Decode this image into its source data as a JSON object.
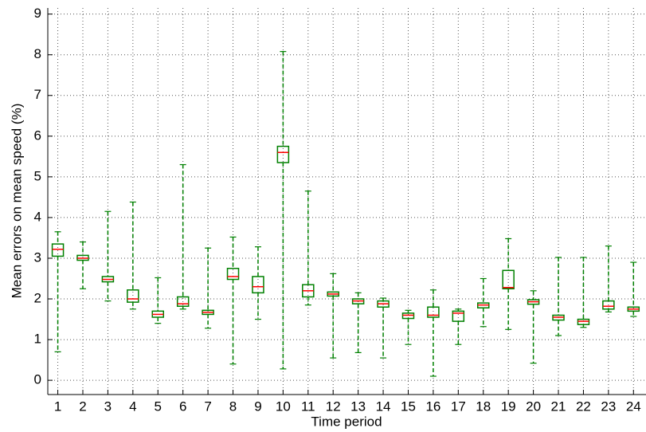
{
  "chart_data": {
    "type": "box",
    "xlabel": "Time period",
    "ylabel": "Mean errors on mean speed (%)",
    "x": [
      1,
      2,
      3,
      4,
      5,
      6,
      7,
      8,
      9,
      10,
      11,
      12,
      13,
      14,
      15,
      16,
      17,
      18,
      19,
      20,
      21,
      22,
      23,
      24
    ],
    "min": [
      0.7,
      2.25,
      1.95,
      1.75,
      1.4,
      1.75,
      1.28,
      0.4,
      1.5,
      0.28,
      1.85,
      0.55,
      0.68,
      0.55,
      0.88,
      0.1,
      0.88,
      1.32,
      1.25,
      0.42,
      1.1,
      1.3,
      1.68,
      1.57
    ],
    "q1": [
      3.05,
      2.95,
      2.42,
      1.92,
      1.55,
      1.82,
      1.62,
      2.48,
      2.15,
      5.35,
      2.05,
      2.07,
      1.88,
      1.8,
      1.52,
      1.55,
      1.45,
      1.78,
      2.25,
      1.87,
      1.48,
      1.37,
      1.75,
      1.7
    ],
    "median": [
      3.22,
      3.0,
      2.48,
      2.0,
      1.62,
      1.88,
      1.67,
      2.55,
      2.3,
      5.6,
      2.2,
      2.12,
      1.95,
      1.88,
      1.6,
      1.6,
      1.65,
      1.85,
      2.28,
      1.93,
      1.55,
      1.45,
      1.82,
      1.75
    ],
    "q3": [
      3.35,
      3.07,
      2.55,
      2.22,
      1.7,
      2.05,
      1.72,
      2.75,
      2.55,
      5.75,
      2.35,
      2.17,
      2.0,
      1.95,
      1.65,
      1.8,
      1.7,
      1.9,
      2.7,
      1.98,
      1.6,
      1.5,
      1.95,
      1.8
    ],
    "max": [
      3.65,
      3.4,
      4.15,
      4.38,
      2.52,
      5.3,
      3.25,
      3.52,
      3.28,
      8.08,
      4.65,
      2.62,
      2.15,
      2.02,
      1.72,
      2.22,
      1.75,
      2.5,
      3.48,
      2.2,
      3.02,
      3.02,
      3.3,
      2.9
    ],
    "box_color": "#008000",
    "median_color": "#ff0000",
    "xlim": [
      0.6,
      24.5
    ],
    "xticks": [
      1,
      2,
      3,
      4,
      5,
      6,
      7,
      8,
      9,
      10,
      11,
      12,
      13,
      14,
      15,
      16,
      17,
      18,
      19,
      20,
      21,
      22,
      23,
      24
    ],
    "ylim": [
      -0.35,
      9.15
    ],
    "yticks": [
      0,
      1,
      2,
      3,
      4,
      5,
      6,
      7,
      8,
      9
    ],
    "grid": true
  }
}
